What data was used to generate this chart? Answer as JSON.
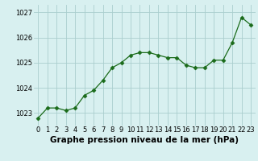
{
  "x": [
    0,
    1,
    2,
    3,
    4,
    5,
    6,
    7,
    8,
    9,
    10,
    11,
    12,
    13,
    14,
    15,
    16,
    17,
    18,
    19,
    20,
    21,
    22,
    23
  ],
  "y": [
    1022.8,
    1023.2,
    1023.2,
    1023.1,
    1023.2,
    1023.7,
    1023.9,
    1024.3,
    1024.8,
    1025.0,
    1025.3,
    1025.4,
    1025.4,
    1025.3,
    1025.2,
    1025.2,
    1024.9,
    1024.8,
    1024.8,
    1025.1,
    1025.1,
    1025.8,
    1026.8,
    1026.5
  ],
  "line_color": "#1a6b1a",
  "marker": "D",
  "marker_size": 2.5,
  "bg_color": "#d8f0f0",
  "grid_color": "#aacece",
  "title": "Graphe pression niveau de la mer (hPa)",
  "xlim": [
    -0.5,
    23.5
  ],
  "ylim": [
    1022.5,
    1027.3
  ],
  "yticks": [
    1023,
    1024,
    1025,
    1026,
    1027
  ],
  "xtick_labels": [
    "0",
    "1",
    "2",
    "3",
    "4",
    "5",
    "6",
    "7",
    "8",
    "9",
    "10",
    "11",
    "12",
    "13",
    "14",
    "15",
    "16",
    "17",
    "18",
    "19",
    "20",
    "21",
    "22",
    "23"
  ],
  "title_fontsize": 7.5,
  "tick_fontsize": 6.0,
  "linewidth": 0.9
}
